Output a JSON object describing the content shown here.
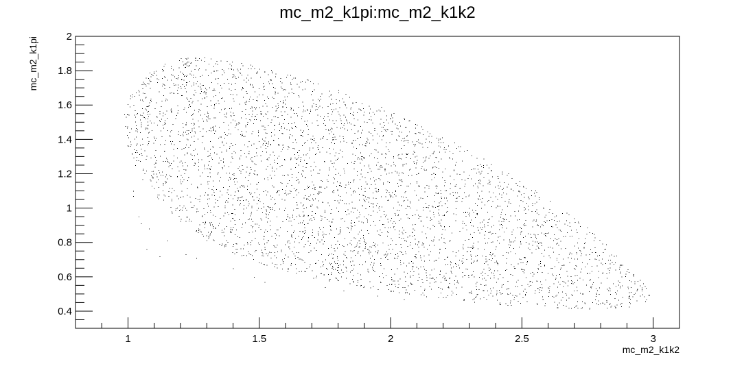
{
  "chart_data": {
    "type": "scatter",
    "title": "mc_m2_k1pi:mc_m2_k1k2",
    "xlabel": "mc_m2_k1k2",
    "ylabel": "mc_m2_k1pi",
    "xlim": [
      0.8,
      3.1
    ],
    "ylim": [
      0.3,
      2.0
    ],
    "x_ticks": [
      1,
      1.5,
      2,
      2.5,
      3
    ],
    "x_tick_labels": [
      "1",
      "1.5",
      "2",
      "2.5",
      "3"
    ],
    "y_ticks": [
      0.4,
      0.6,
      0.8,
      1.0,
      1.2,
      1.4,
      1.6,
      1.8,
      2.0
    ],
    "y_tick_labels": [
      "0.4",
      "0.6",
      "0.8",
      "1",
      "1.2",
      "1.4",
      "1.6",
      "1.8",
      "2"
    ],
    "grid": false,
    "legend": "none",
    "marker_color": "#000000",
    "boundary_upper": [
      [
        0.98,
        1.52
      ],
      [
        1.0,
        1.65
      ],
      [
        1.05,
        1.76
      ],
      [
        1.12,
        1.84
      ],
      [
        1.2,
        1.875
      ],
      [
        1.3,
        1.88
      ],
      [
        1.45,
        1.85
      ],
      [
        1.6,
        1.79
      ],
      [
        1.8,
        1.69
      ],
      [
        2.0,
        1.57
      ],
      [
        2.2,
        1.42
      ],
      [
        2.4,
        1.25
      ],
      [
        2.6,
        1.06
      ],
      [
        2.75,
        0.89
      ],
      [
        2.87,
        0.72
      ],
      [
        2.95,
        0.59
      ],
      [
        2.99,
        0.5
      ]
    ],
    "boundary_lower": [
      [
        0.98,
        1.52
      ],
      [
        1.0,
        1.35
      ],
      [
        1.04,
        1.2
      ],
      [
        1.1,
        1.07
      ],
      [
        1.2,
        0.92
      ],
      [
        1.3,
        0.81
      ],
      [
        1.45,
        0.7
      ],
      [
        1.6,
        0.63
      ],
      [
        1.8,
        0.56
      ],
      [
        2.0,
        0.51
      ],
      [
        2.2,
        0.47
      ],
      [
        2.4,
        0.44
      ],
      [
        2.6,
        0.42
      ],
      [
        2.75,
        0.41
      ],
      [
        2.88,
        0.415
      ],
      [
        2.96,
        0.44
      ],
      [
        2.99,
        0.5
      ]
    ],
    "outlier_points": [
      [
        1.02,
        1.1
      ],
      [
        1.02,
        1.07
      ],
      [
        1.04,
        0.95
      ],
      [
        1.05,
        0.91
      ],
      [
        1.07,
        0.76
      ],
      [
        1.08,
        0.88
      ],
      [
        1.12,
        0.72
      ],
      [
        1.15,
        0.81
      ],
      [
        1.22,
        0.73
      ],
      [
        1.26,
        0.71
      ],
      [
        1.4,
        0.65
      ],
      [
        1.48,
        0.6
      ],
      [
        1.52,
        0.57
      ],
      [
        1.75,
        0.54
      ],
      [
        1.82,
        0.52
      ],
      [
        1.95,
        0.49
      ],
      [
        2.05,
        0.47
      ]
    ]
  }
}
